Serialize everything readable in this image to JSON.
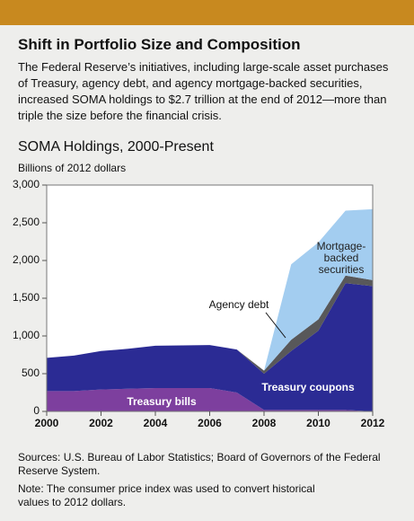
{
  "title": "Shift in Portfolio Size and Composition",
  "subtitle": "The Federal Reserve’s initiatives, including large-scale asset purchases of Treasury, agency debt, and agency mortgage-backed securities, increased SOMA holdings to $2.7 trillion at the end of 2012—more than triple the size before the financial crisis.",
  "chart_data": {
    "type": "stacked_area",
    "title": "SOMA Holdings, 2000-Present",
    "y_label": "Billions of 2012 dollars",
    "x": [
      2000,
      2001,
      2002,
      2003,
      2004,
      2005,
      2006,
      2007,
      2008,
      2009,
      2010,
      2011,
      2012
    ],
    "series": [
      {
        "name": "Treasury bills",
        "color": "#7d3f9e",
        "values": [
          270,
          270,
          290,
          300,
          310,
          310,
          310,
          250,
          20,
          20,
          20,
          20,
          0
        ]
      },
      {
        "name": "Treasury coupons",
        "color": "#2b2b94",
        "values": [
          440,
          470,
          510,
          530,
          560,
          565,
          570,
          570,
          480,
          780,
          1050,
          1680,
          1660
        ]
      },
      {
        "name": "Agency debt",
        "color": "#58585a",
        "values": [
          0,
          0,
          0,
          0,
          0,
          0,
          0,
          0,
          40,
          150,
          150,
          100,
          80
        ]
      },
      {
        "name": "Mortgage-backed securities",
        "color": "#a3cdf0",
        "values": [
          0,
          0,
          0,
          0,
          0,
          0,
          0,
          0,
          0,
          1000,
          1020,
          860,
          940
        ]
      }
    ],
    "xlim": [
      2000,
      2012
    ],
    "xticks": [
      2000,
      2002,
      2004,
      2006,
      2008,
      2010,
      2012
    ],
    "ylim": [
      0,
      3000
    ],
    "yticks": [
      0,
      500,
      {
        "value": 1000,
        "label": "1,000"
      },
      {
        "value": 1500,
        "label": "1,500"
      },
      {
        "value": 2000,
        "label": "2,000"
      },
      {
        "value": 2500,
        "label": "2,500"
      },
      {
        "value": 3000,
        "label": "3,000"
      }
    ],
    "grid": false
  },
  "sources": "Sources: U.S. Bureau of Labor Statistics; Board of Governors of the Federal Reserve System.",
  "note": "Note: The consumer price index was used to convert historical values to 2012 dollars."
}
